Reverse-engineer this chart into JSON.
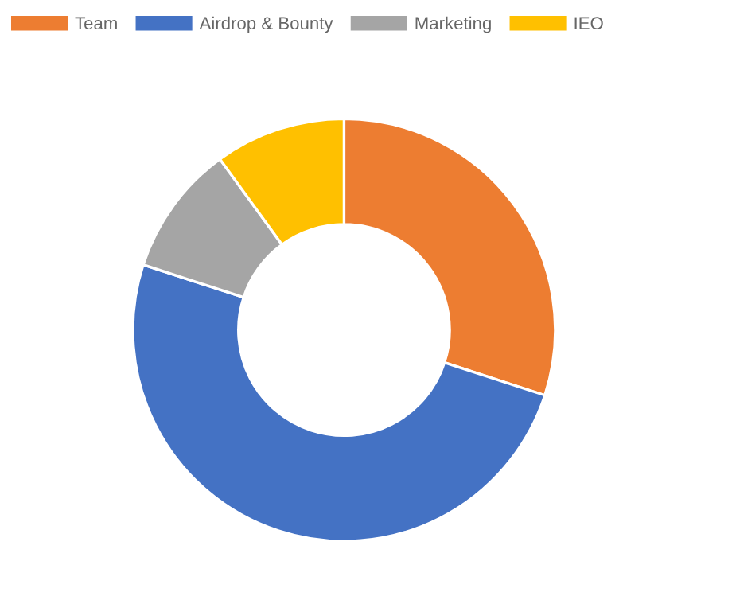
{
  "chart_data": {
    "type": "donut",
    "categories": [
      "Team",
      "Airdrop & Bounty",
      "Marketing",
      "IEO"
    ],
    "values": [
      30,
      50,
      10,
      10
    ],
    "colors": [
      "#ed7d31",
      "#4472c4",
      "#a5a5a5",
      "#ffc000"
    ],
    "legend": "top"
  }
}
